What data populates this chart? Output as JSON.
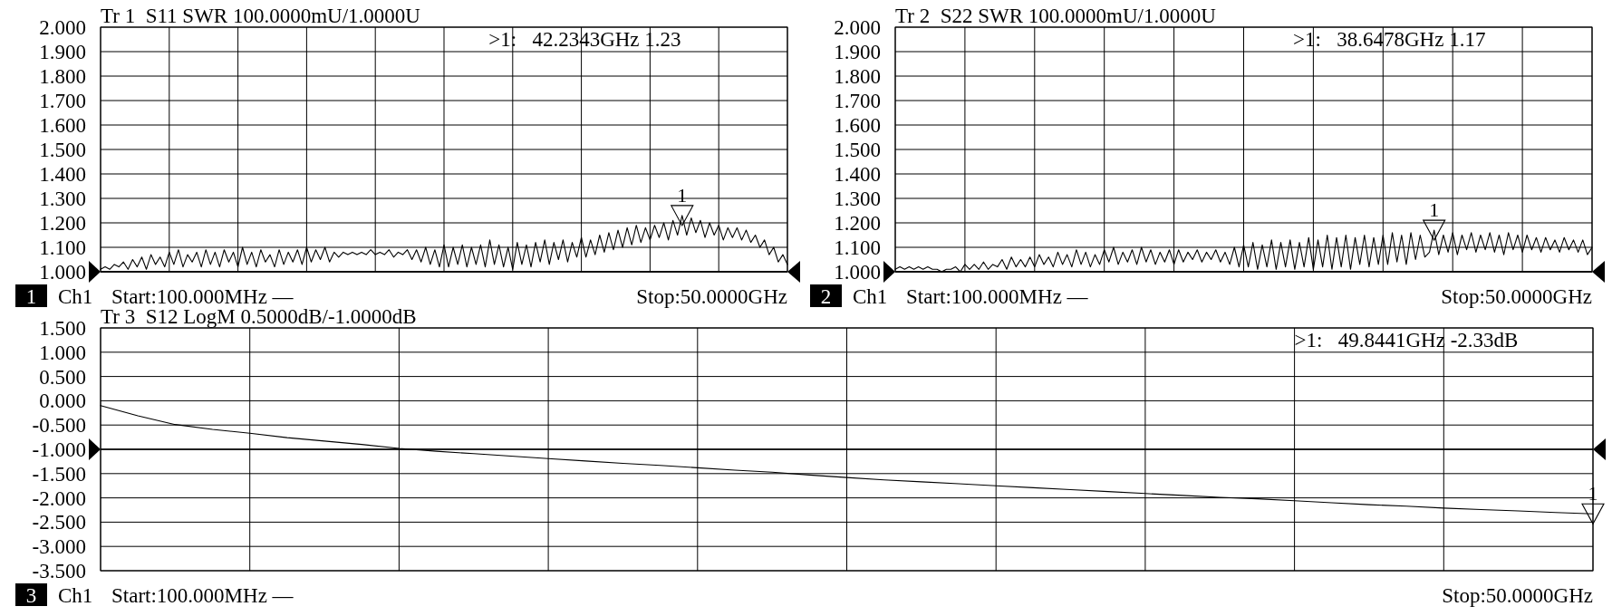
{
  "chart_data": [
    {
      "type": "line",
      "title": "Tr 1  S11 SWR 100.0000mU/1.0000U",
      "categories": [
        null,
        null,
        null,
        null,
        null,
        null,
        null,
        null,
        null,
        null,
        null,
        null,
        null,
        null,
        null,
        null,
        null,
        null,
        null,
        null,
        null,
        null,
        null,
        null,
        null,
        null,
        null,
        null,
        null,
        null,
        null,
        null,
        null,
        null,
        null,
        null,
        null,
        null,
        null,
        null,
        null,
        null,
        null,
        null,
        null,
        null,
        null,
        null,
        null,
        null,
        null,
        null,
        null,
        null,
        null,
        null,
        null,
        null,
        null,
        null,
        null,
        null,
        null,
        null,
        null,
        null,
        null,
        null,
        null,
        null,
        null,
        null,
        null,
        null,
        null,
        null,
        null,
        null,
        null,
        null,
        null,
        null,
        null,
        null,
        null,
        null,
        null,
        null,
        null,
        null,
        null,
        null,
        null,
        null,
        null,
        null,
        null,
        null,
        null,
        null,
        null,
        null,
        null,
        null,
        null,
        null,
        null,
        null,
        null,
        null,
        null,
        null,
        null,
        null,
        null,
        null,
        null,
        null,
        null,
        null,
        null,
        null,
        null,
        null,
        null,
        null,
        null,
        null,
        null,
        null,
        null,
        null,
        null,
        null,
        null,
        null,
        null,
        null,
        null,
        null,
        null,
        null,
        null,
        null,
        null,
        null,
        null,
        null,
        null,
        null,
        null
      ],
      "series": [
        {
          "color": "#000000",
          "values": [
            1.01,
            1.02,
            1.01,
            1.03,
            1.02,
            1.04,
            1.01,
            1.05,
            1.02,
            1.06,
            1.01,
            1.07,
            1.03,
            1.06,
            1.02,
            1.08,
            1.03,
            1.09,
            1.02,
            1.07,
            1.04,
            1.08,
            1.02,
            1.09,
            1.03,
            1.08,
            1.02,
            1.09,
            1.04,
            1.08,
            1.02,
            1.1,
            1.03,
            1.08,
            1.02,
            1.09,
            1.04,
            1.07,
            1.02,
            1.09,
            1.03,
            1.08,
            1.04,
            1.09,
            1.03,
            1.1,
            1.04,
            1.09,
            1.05,
            1.1,
            1.04,
            1.08,
            1.06,
            1.08,
            1.07,
            1.08,
            1.07,
            1.08,
            1.07,
            1.09,
            1.07,
            1.08,
            1.07,
            1.09,
            1.06,
            1.08,
            1.07,
            1.09,
            1.05,
            1.09,
            1.04,
            1.1,
            1.03,
            1.09,
            1.02,
            1.11,
            1.02,
            1.1,
            1.03,
            1.11,
            1.02,
            1.1,
            1.03,
            1.11,
            1.02,
            1.13,
            1.03,
            1.11,
            1.02,
            1.1,
            1.01,
            1.12,
            1.03,
            1.11,
            1.02,
            1.12,
            1.04,
            1.13,
            1.03,
            1.12,
            1.05,
            1.13,
            1.04,
            1.12,
            1.06,
            1.14,
            1.06,
            1.13,
            1.07,
            1.15,
            1.08,
            1.16,
            1.09,
            1.17,
            1.1,
            1.18,
            1.11,
            1.19,
            1.12,
            1.18,
            1.13,
            1.19,
            1.14,
            1.2,
            1.13,
            1.21,
            1.15,
            1.23,
            1.15,
            1.22,
            1.16,
            1.21,
            1.14,
            1.2,
            1.15,
            1.19,
            1.13,
            1.18,
            1.14,
            1.18,
            1.13,
            1.17,
            1.12,
            1.15,
            1.1,
            1.13,
            1.07,
            1.1,
            1.04,
            1.07,
            1.03
          ]
        },
        {
          "name": "1",
          "type": "scatter",
          "marker": "triangle",
          "color": "#000000",
          "values": [
            null,
            null,
            null,
            null,
            null,
            null,
            null,
            null,
            null,
            null,
            null,
            null,
            null,
            null,
            null,
            null,
            null,
            null,
            null,
            null,
            null,
            null,
            null,
            null,
            null,
            null,
            null,
            null,
            null,
            null,
            null,
            null,
            null,
            null,
            null,
            null,
            null,
            null,
            null,
            null,
            null,
            null,
            null,
            null,
            null,
            null,
            null,
            null,
            null,
            null,
            null,
            null,
            null,
            null,
            null,
            null,
            null,
            null,
            null,
            null,
            null,
            null,
            null,
            null,
            null,
            null,
            null,
            null,
            null,
            null,
            null,
            null,
            null,
            null,
            null,
            null,
            null,
            null,
            null,
            null,
            null,
            null,
            null,
            null,
            null,
            null,
            null,
            null,
            null,
            null,
            null,
            null,
            null,
            null,
            null,
            null,
            null,
            null,
            null,
            null,
            null,
            null,
            null,
            null,
            null,
            null,
            null,
            null,
            null,
            null,
            null,
            null,
            null,
            null,
            null,
            null,
            null,
            null,
            null,
            null,
            null,
            null,
            null,
            null,
            null,
            null,
            null,
            1.23,
            null,
            null,
            null,
            null,
            null,
            null,
            null,
            null,
            null,
            null,
            null,
            null,
            null,
            null,
            null,
            null,
            null,
            null,
            null,
            null,
            null,
            null,
            null
          ]
        }
      ],
      "ylim": [
        1,
        2
      ],
      "yticks": [
        {
          "value": 1,
          "label": "1.000"
        },
        {
          "value": 1.1,
          "label": "1.100"
        },
        {
          "value": 1.2,
          "label": "1.200"
        },
        {
          "value": 1.3,
          "label": "1.300"
        },
        {
          "value": 1.4,
          "label": "1.400"
        },
        {
          "value": 1.5,
          "label": "1.500"
        },
        {
          "value": 1.6,
          "label": "1.600"
        },
        {
          "value": 1.7,
          "label": "1.700"
        },
        {
          "value": 1.8,
          "label": "1.800"
        },
        {
          "value": 1.9,
          "label": "1.900"
        },
        {
          "value": 2,
          "label": "2.000"
        }
      ],
      "grid": true,
      "ref_lines": [
        {
          "axis": "y",
          "value": 1
        }
      ],
      "annotations": [
        ">1:   42.2343GHz 1.23",
        "1",
        "Ch1",
        "Start:100.000MHz —",
        "Stop:50.0000GHz"
      ]
    },
    {
      "type": "line",
      "title": "Tr 2  S22 SWR 100.0000mU/1.0000U",
      "categories": [
        null,
        null,
        null,
        null,
        null,
        null,
        null,
        null,
        null,
        null,
        null,
        null,
        null,
        null,
        null,
        null,
        null,
        null,
        null,
        null,
        null,
        null,
        null,
        null,
        null,
        null,
        null,
        null,
        null,
        null,
        null,
        null,
        null,
        null,
        null,
        null,
        null,
        null,
        null,
        null,
        null,
        null,
        null,
        null,
        null,
        null,
        null,
        null,
        null,
        null,
        null,
        null,
        null,
        null,
        null,
        null,
        null,
        null,
        null,
        null,
        null,
        null,
        null,
        null,
        null,
        null,
        null,
        null,
        null,
        null,
        null,
        null,
        null,
        null,
        null,
        null,
        null,
        null,
        null,
        null,
        null,
        null,
        null,
        null,
        null,
        null,
        null,
        null,
        null,
        null,
        null,
        null,
        null,
        null,
        null,
        null,
        null,
        null,
        null,
        null,
        null,
        null,
        null,
        null,
        null,
        null,
        null,
        null,
        null,
        null,
        null,
        null,
        null,
        null,
        null,
        null,
        null,
        null,
        null,
        null,
        null,
        null,
        null,
        null,
        null,
        null,
        null,
        null,
        null,
        null,
        null,
        null,
        null,
        null,
        null,
        null,
        null,
        null,
        null,
        null,
        null,
        null,
        null,
        null,
        null,
        null,
        null,
        null,
        null,
        null,
        null
      ],
      "series": [
        {
          "color": "#000000",
          "values": [
            1.01,
            1.02,
            1.01,
            1.02,
            1.01,
            1.02,
            1.01,
            1.02,
            1.01,
            1.01,
            1.0,
            1.01,
            1.01,
            1.02,
            1.0,
            1.03,
            1.01,
            1.03,
            1.01,
            1.04,
            1.01,
            1.03,
            1.02,
            1.05,
            1.01,
            1.06,
            1.02,
            1.05,
            1.02,
            1.06,
            1.02,
            1.07,
            1.03,
            1.06,
            1.02,
            1.08,
            1.03,
            1.07,
            1.02,
            1.09,
            1.03,
            1.08,
            1.02,
            1.07,
            1.03,
            1.09,
            1.04,
            1.1,
            1.03,
            1.08,
            1.04,
            1.09,
            1.03,
            1.1,
            1.04,
            1.09,
            1.03,
            1.08,
            1.04,
            1.09,
            1.03,
            1.09,
            1.04,
            1.08,
            1.05,
            1.09,
            1.04,
            1.08,
            1.05,
            1.09,
            1.04,
            1.08,
            1.03,
            1.1,
            1.02,
            1.11,
            1.02,
            1.12,
            1.01,
            1.11,
            1.02,
            1.13,
            1.01,
            1.12,
            1.02,
            1.13,
            1.01,
            1.12,
            1.02,
            1.14,
            1.01,
            1.13,
            1.02,
            1.15,
            1.01,
            1.14,
            1.02,
            1.15,
            1.01,
            1.14,
            1.03,
            1.15,
            1.02,
            1.14,
            1.03,
            1.15,
            1.03,
            1.16,
            1.04,
            1.15,
            1.03,
            1.16,
            1.05,
            1.15,
            1.06,
            1.08,
            1.17,
            1.07,
            1.15,
            1.08,
            1.16,
            1.07,
            1.15,
            1.09,
            1.16,
            1.08,
            1.15,
            1.09,
            1.16,
            1.08,
            1.15,
            1.07,
            1.16,
            1.09,
            1.15,
            1.08,
            1.15,
            1.09,
            1.14,
            1.08,
            1.14,
            1.09,
            1.13,
            1.08,
            1.14,
            1.09,
            1.13,
            1.08,
            1.13,
            1.07,
            1.1
          ]
        },
        {
          "name": "1",
          "type": "scatter",
          "marker": "triangle",
          "color": "#000000",
          "values": [
            null,
            null,
            null,
            null,
            null,
            null,
            null,
            null,
            null,
            null,
            null,
            null,
            null,
            null,
            null,
            null,
            null,
            null,
            null,
            null,
            null,
            null,
            null,
            null,
            null,
            null,
            null,
            null,
            null,
            null,
            null,
            null,
            null,
            null,
            null,
            null,
            null,
            null,
            null,
            null,
            null,
            null,
            null,
            null,
            null,
            null,
            null,
            null,
            null,
            null,
            null,
            null,
            null,
            null,
            null,
            null,
            null,
            null,
            null,
            null,
            null,
            null,
            null,
            null,
            null,
            null,
            null,
            null,
            null,
            null,
            null,
            null,
            null,
            null,
            null,
            null,
            null,
            null,
            null,
            null,
            null,
            null,
            null,
            null,
            null,
            null,
            null,
            null,
            null,
            null,
            null,
            null,
            null,
            null,
            null,
            null,
            null,
            null,
            null,
            null,
            null,
            null,
            null,
            null,
            null,
            null,
            null,
            null,
            null,
            null,
            null,
            null,
            null,
            null,
            null,
            null,
            1.17,
            null,
            null,
            null,
            null,
            null,
            null,
            null,
            null,
            null,
            null,
            null,
            null,
            null,
            null,
            null,
            null,
            null,
            null,
            null,
            null,
            null,
            null,
            null,
            null,
            null,
            null,
            null,
            null,
            null,
            null,
            null,
            null,
            null,
            null
          ]
        }
      ],
      "ylim": [
        1,
        2
      ],
      "yticks": [
        {
          "value": 1,
          "label": "1.000"
        },
        {
          "value": 1.1,
          "label": "1.100"
        },
        {
          "value": 1.2,
          "label": "1.200"
        },
        {
          "value": 1.3,
          "label": "1.300"
        },
        {
          "value": 1.4,
          "label": "1.400"
        },
        {
          "value": 1.5,
          "label": "1.500"
        },
        {
          "value": 1.6,
          "label": "1.600"
        },
        {
          "value": 1.7,
          "label": "1.700"
        },
        {
          "value": 1.8,
          "label": "1.800"
        },
        {
          "value": 1.9,
          "label": "1.900"
        },
        {
          "value": 2,
          "label": "2.000"
        }
      ],
      "grid": true,
      "ref_lines": [
        {
          "axis": "y",
          "value": 1
        }
      ],
      "annotations": [
        ">1:   38.6478GHz 1.17",
        "2",
        "Ch1",
        "Start:100.000MHz —",
        "Stop:50.0000GHz"
      ]
    },
    {
      "type": "line",
      "title": "Tr 3  S12 LogM 0.5000dB/-1.0000dB",
      "categories": [
        null,
        null,
        null,
        null,
        null,
        null,
        null,
        null,
        null,
        null,
        null,
        null,
        null,
        null,
        null,
        null,
        null,
        null,
        null,
        null,
        null,
        null,
        null,
        null,
        null,
        null,
        null,
        null,
        null,
        null,
        null,
        null,
        null,
        null,
        null,
        null,
        null,
        null,
        null,
        null,
        null
      ],
      "series": [
        {
          "color": "#000000",
          "values": [
            -0.1,
            -0.31,
            -0.49,
            -0.59,
            -0.67,
            -0.76,
            -0.83,
            -0.9,
            -0.98,
            -1.04,
            -1.09,
            -1.14,
            -1.19,
            -1.24,
            -1.29,
            -1.33,
            -1.38,
            -1.43,
            -1.47,
            -1.53,
            -1.58,
            -1.63,
            -1.67,
            -1.71,
            -1.75,
            -1.79,
            -1.83,
            -1.87,
            -1.91,
            -1.95,
            -1.99,
            -2.02,
            -2.06,
            -2.1,
            -2.14,
            -2.17,
            -2.21,
            -2.24,
            -2.27,
            -2.3,
            -2.33
          ]
        },
        {
          "name": "1",
          "type": "scatter",
          "marker": "triangle",
          "color": "#000000",
          "values": [
            null,
            null,
            null,
            null,
            null,
            null,
            null,
            null,
            null,
            null,
            null,
            null,
            null,
            null,
            null,
            null,
            null,
            null,
            null,
            null,
            null,
            null,
            null,
            null,
            null,
            null,
            null,
            null,
            null,
            null,
            null,
            null,
            null,
            null,
            null,
            null,
            null,
            null,
            null,
            null,
            -2.33
          ]
        }
      ],
      "ylim": [
        -3.5,
        1.5
      ],
      "yticks": [
        {
          "value": 1.5,
          "label": "1.500"
        },
        {
          "value": 1,
          "label": "1.000"
        },
        {
          "value": 0.5,
          "label": "0.500"
        },
        {
          "value": 0,
          "label": "0.000"
        },
        {
          "value": -0.5,
          "label": "-0.500"
        },
        {
          "value": -1,
          "label": "-1.000"
        },
        {
          "value": -1.5,
          "label": "-1.500"
        },
        {
          "value": -2,
          "label": "-2.000"
        },
        {
          "value": -2.5,
          "label": "-2.500"
        },
        {
          "value": -3,
          "label": "-3.000"
        },
        {
          "value": -3.5,
          "label": "-3.500"
        }
      ],
      "grid": true,
      "ref_lines": [
        {
          "axis": "y",
          "value": -1
        }
      ],
      "annotations": [
        ">1:   49.8441GHz -2.33dB",
        "3",
        "Ch1",
        "Start:100.000MHz —",
        "Stop:50.0000GHz"
      ]
    }
  ]
}
